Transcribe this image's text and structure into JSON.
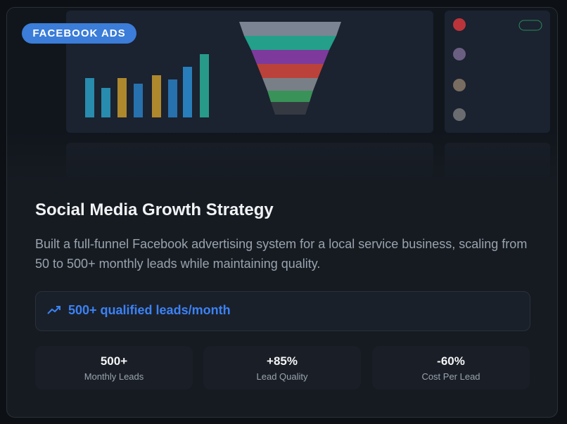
{
  "badge": "FACEBOOK ADS",
  "title": "Social Media Growth Strategy",
  "description": "Built a full-funnel Facebook advertising system for a local service business, scaling from 50 to 500+ monthly leads while maintaining quality.",
  "highlight": "500+ qualified leads/month",
  "stats": [
    {
      "value": "500+",
      "label": "Monthly Leads"
    },
    {
      "value": "+85%",
      "label": "Lead Quality"
    },
    {
      "value": "-60%",
      "label": "Cost Per Lead"
    }
  ]
}
